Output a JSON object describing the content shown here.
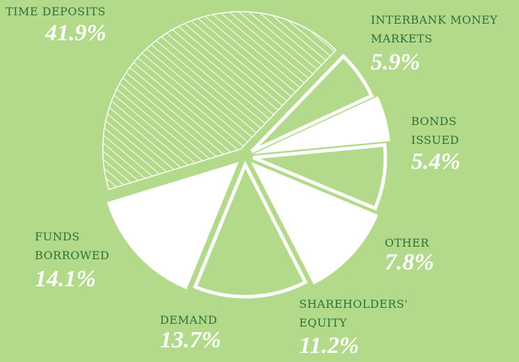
{
  "chart_data": {
    "type": "pie",
    "labels": [
      [
        "TIME DEPOSITS"
      ],
      [
        "INTERBANK MONEY",
        "MARKETS"
      ],
      [
        "BONDS",
        "ISSUED"
      ],
      [
        "OTHER"
      ],
      [
        "SHAREHOLDERS'",
        "EQUITY"
      ],
      [
        "DEMAND"
      ],
      [
        "FUNDS",
        "BORROWED"
      ]
    ],
    "values": [
      41.9,
      5.9,
      5.4,
      7.8,
      11.2,
      13.7,
      14.1
    ],
    "value_labels": [
      "41.9%",
      "5.9%",
      "5.4%",
      "7.8%",
      "11.2%",
      "13.7%",
      "14.1%"
    ],
    "styles": [
      "hatched",
      "outline",
      "filled",
      "outline",
      "filled",
      "outline",
      "filled"
    ],
    "color": "#ffffff"
  }
}
